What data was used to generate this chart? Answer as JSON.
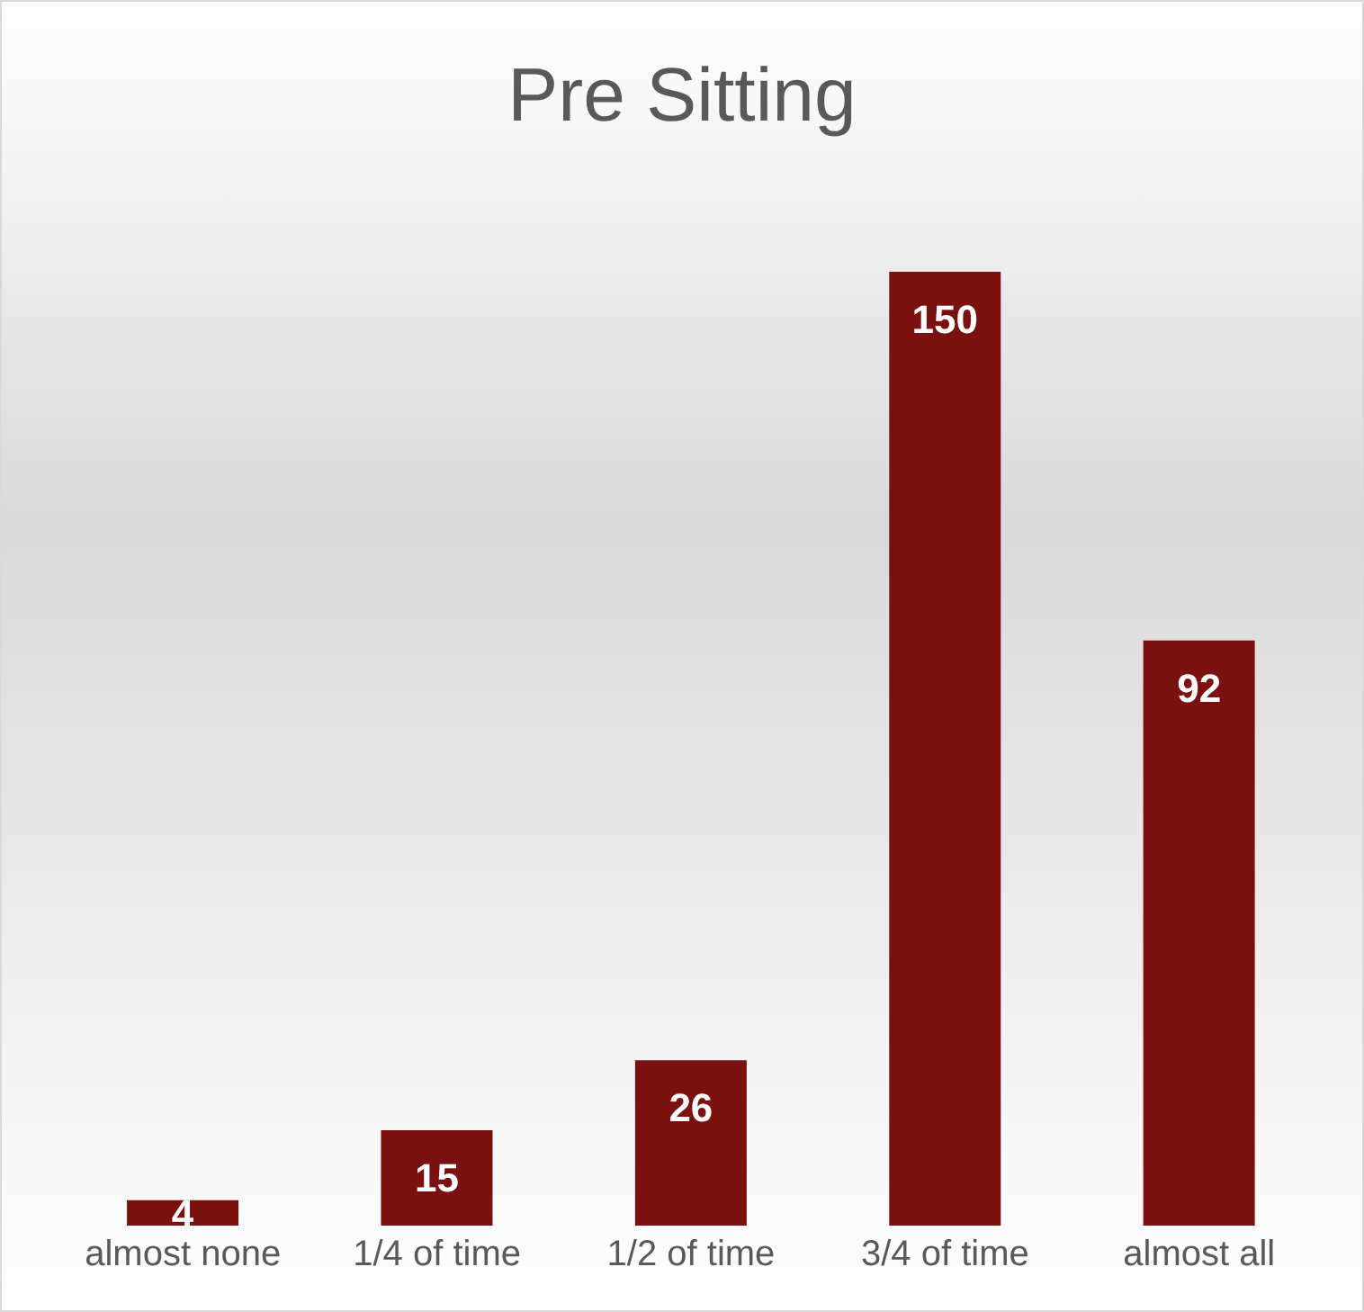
{
  "chart_data": {
    "type": "bar",
    "title": "Pre Sitting",
    "categories": [
      "almost none",
      "1/4 of time",
      "1/2 of time",
      "3/4 of time",
      "almost all"
    ],
    "values": [
      4,
      15,
      26,
      150,
      92
    ],
    "color": "#7b1010",
    "data_labels": true
  }
}
